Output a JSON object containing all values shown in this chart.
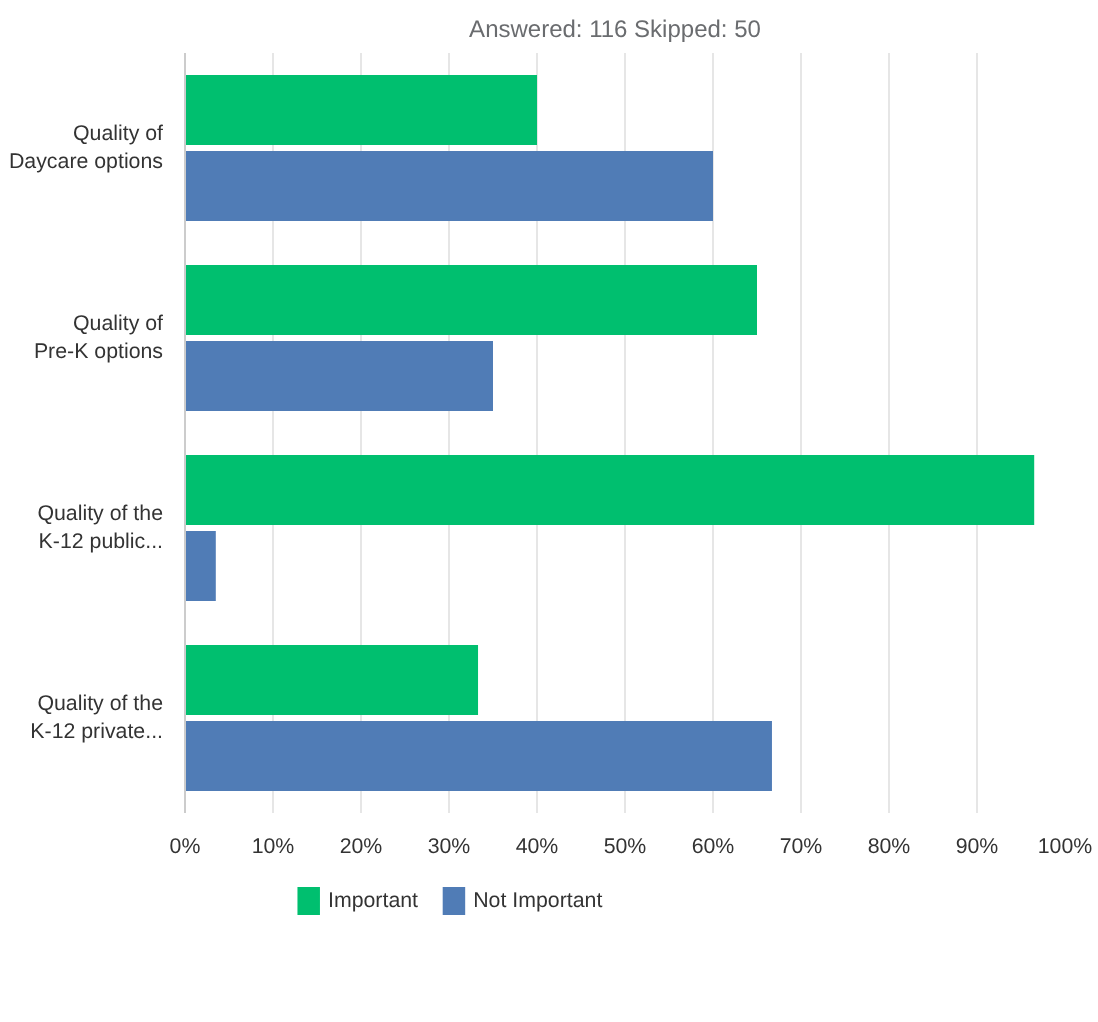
{
  "chart_data": {
    "type": "bar",
    "orientation": "horizontal",
    "title": "Answered: 116    Skipped: 50",
    "categories": [
      "Quality of\nDaycare options",
      "Quality of\nPre-K options",
      "Quality of the\nK-12 public...",
      "Quality of the\nK-12 private..."
    ],
    "series": [
      {
        "name": "Important",
        "color": "#00bf6f",
        "values": [
          40,
          65,
          96.5,
          33.3
        ]
      },
      {
        "name": "Not Important",
        "color": "#507cb6",
        "values": [
          60,
          35,
          3.5,
          66.7
        ]
      }
    ],
    "xlim": [
      0,
      100
    ],
    "xticks": [
      {
        "value": 0,
        "label": "0%"
      },
      {
        "value": 10,
        "label": "10%"
      },
      {
        "value": 20,
        "label": "20%"
      },
      {
        "value": 30,
        "label": "30%"
      },
      {
        "value": 40,
        "label": "40%"
      },
      {
        "value": 50,
        "label": "50%"
      },
      {
        "value": 60,
        "label": "60%"
      },
      {
        "value": 70,
        "label": "70%"
      },
      {
        "value": 80,
        "label": "80%"
      },
      {
        "value": 90,
        "label": "90%"
      },
      {
        "value": 100,
        "label": "100%"
      }
    ],
    "grid": "x",
    "legend": "bottom left"
  }
}
